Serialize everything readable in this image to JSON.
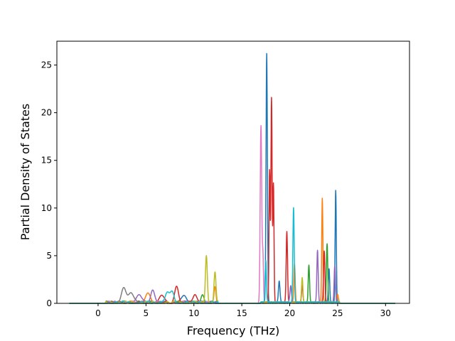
{
  "chart_data": {
    "type": "line",
    "title": "",
    "xlabel": "Frequency (THz)",
    "ylabel": "Partial Density of States",
    "xlim": [
      -4.3,
      32.5
    ],
    "ylim": [
      0,
      27.5
    ],
    "xticks": [
      0,
      5,
      10,
      15,
      20,
      25,
      30
    ],
    "yticks": [
      0,
      5,
      10,
      15,
      20,
      25
    ],
    "grid": false,
    "legend": "none",
    "series_colors": [
      "#1f77b4",
      "#ff7f0e",
      "#2ca02c",
      "#d62728",
      "#9467bd",
      "#8c564b",
      "#e377c2",
      "#7f7f7f",
      "#bcbd22",
      "#17becf"
    ],
    "x_range": [
      -3,
      31
    ],
    "peaks": [
      {
        "s": 7,
        "x": 2.7,
        "y": 1.6,
        "w": 0.25
      },
      {
        "s": 7,
        "x": 3.5,
        "y": 1.0,
        "w": 0.25
      },
      {
        "s": 4,
        "x": 4.3,
        "y": 0.9,
        "w": 0.25
      },
      {
        "s": 1,
        "x": 5.2,
        "y": 0.9,
        "w": 0.25
      },
      {
        "s": 4,
        "x": 5.7,
        "y": 1.4,
        "w": 0.2
      },
      {
        "s": 3,
        "x": 6.6,
        "y": 0.8,
        "w": 0.25
      },
      {
        "s": 9,
        "x": 7.2,
        "y": 0.9,
        "w": 0.25
      },
      {
        "s": 3,
        "x": 8.2,
        "y": 1.7,
        "w": 0.2
      },
      {
        "s": 9,
        "x": 7.7,
        "y": 1.1,
        "w": 0.2
      },
      {
        "s": 0,
        "x": 9.0,
        "y": 0.7,
        "w": 0.25
      },
      {
        "s": 3,
        "x": 10.1,
        "y": 0.9,
        "w": 0.2
      },
      {
        "s": 2,
        "x": 10.9,
        "y": 0.8,
        "w": 0.15
      },
      {
        "s": 8,
        "x": 11.3,
        "y": 5.0,
        "w": 0.1
      },
      {
        "s": 8,
        "x": 12.2,
        "y": 3.1,
        "w": 0.1
      },
      {
        "s": 1,
        "x": 12.2,
        "y": 1.7,
        "w": 0.1
      },
      {
        "s": 6,
        "x": 17.0,
        "y": 18.5,
        "w": 0.08
      },
      {
        "s": 6,
        "x": 17.2,
        "y": 4.8,
        "w": 0.06
      },
      {
        "s": 0,
        "x": 17.6,
        "y": 26.2,
        "w": 0.07
      },
      {
        "s": 9,
        "x": 17.5,
        "y": 4.4,
        "w": 0.07
      },
      {
        "s": 3,
        "x": 17.9,
        "y": 13.8,
        "w": 0.06
      },
      {
        "s": 3,
        "x": 18.1,
        "y": 21.5,
        "w": 0.06
      },
      {
        "s": 3,
        "x": 18.3,
        "y": 12.4,
        "w": 0.06
      },
      {
        "s": 0,
        "x": 18.9,
        "y": 2.3,
        "w": 0.08
      },
      {
        "s": 3,
        "x": 19.7,
        "y": 7.5,
        "w": 0.07
      },
      {
        "s": 4,
        "x": 20.1,
        "y": 1.8,
        "w": 0.08
      },
      {
        "s": 9,
        "x": 20.4,
        "y": 9.9,
        "w": 0.07
      },
      {
        "s": 1,
        "x": 20.5,
        "y": 4.1,
        "w": 0.07
      },
      {
        "s": 8,
        "x": 21.3,
        "y": 2.6,
        "w": 0.07
      },
      {
        "s": 3,
        "x": 21.3,
        "y": 1.8,
        "w": 0.07
      },
      {
        "s": 2,
        "x": 22.0,
        "y": 3.9,
        "w": 0.07
      },
      {
        "s": 4,
        "x": 22.9,
        "y": 5.5,
        "w": 0.07
      },
      {
        "s": 1,
        "x": 23.4,
        "y": 10.9,
        "w": 0.06
      },
      {
        "s": 3,
        "x": 23.6,
        "y": 5.5,
        "w": 0.07
      },
      {
        "s": 2,
        "x": 23.9,
        "y": 6.1,
        "w": 0.07
      },
      {
        "s": 0,
        "x": 24.1,
        "y": 3.5,
        "w": 0.07
      },
      {
        "s": 0,
        "x": 24.8,
        "y": 11.7,
        "w": 0.06
      },
      {
        "s": 4,
        "x": 24.7,
        "y": 3.8,
        "w": 0.07
      },
      {
        "s": 1,
        "x": 25.0,
        "y": 0.8,
        "w": 0.07
      }
    ]
  }
}
